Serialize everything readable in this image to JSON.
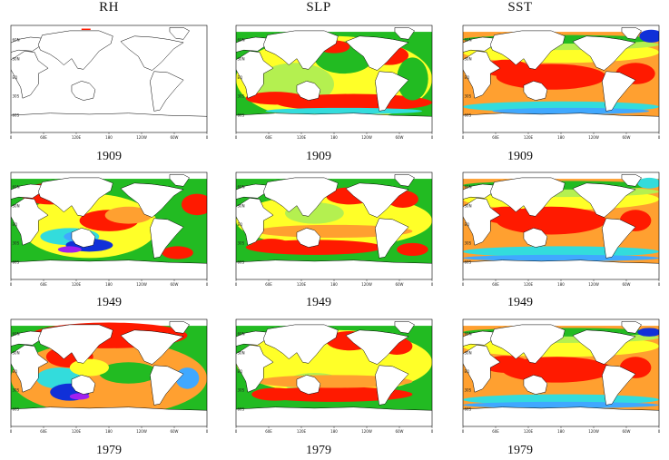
{
  "columns": [
    {
      "key": "rh",
      "title": "RH"
    },
    {
      "key": "slp",
      "title": "SLP"
    },
    {
      "key": "sst",
      "title": "SST"
    }
  ],
  "years": [
    "1909",
    "1949",
    "1979"
  ],
  "axis": {
    "x_ticks": [
      "0",
      "60E",
      "120E",
      "180",
      "120W",
      "60W",
      "0"
    ],
    "y_ticks": [
      "60N",
      "30N",
      "EQ",
      "30S",
      "60S"
    ]
  },
  "colors": {
    "red": "#ff1a00",
    "orange": "#ffa030",
    "yellow": "#ffff28",
    "lightgreen": "#b4f050",
    "green": "#22bb22",
    "cyan": "#33dcdc",
    "lightblue": "#40a8ff",
    "blue": "#1030d8",
    "purple": "#a020f0",
    "land": "#ffffff",
    "coast": "#000000"
  },
  "panels": [
    {
      "col": "rh",
      "year": "1909",
      "coverage": "sparse",
      "dominant_colors": [
        "red"
      ]
    },
    {
      "col": "slp",
      "year": "1909",
      "coverage": "ocean",
      "dominant_colors": [
        "red",
        "yellow",
        "green",
        "lightgreen",
        "cyan",
        "purple"
      ]
    },
    {
      "col": "sst",
      "year": "1909",
      "coverage": "ocean",
      "dominant_colors": [
        "red",
        "orange",
        "yellow",
        "lightgreen",
        "green",
        "cyan",
        "blue"
      ]
    },
    {
      "col": "rh",
      "year": "1949",
      "coverage": "ocean",
      "dominant_colors": [
        "red",
        "orange",
        "yellow",
        "green",
        "cyan",
        "blue",
        "purple"
      ]
    },
    {
      "col": "slp",
      "year": "1949",
      "coverage": "ocean",
      "dominant_colors": [
        "red",
        "orange",
        "yellow",
        "lightgreen",
        "green",
        "blue",
        "purple"
      ]
    },
    {
      "col": "sst",
      "year": "1949",
      "coverage": "ocean",
      "dominant_colors": [
        "red",
        "orange",
        "yellow",
        "lightgreen",
        "green",
        "cyan",
        "lightblue"
      ]
    },
    {
      "col": "rh",
      "year": "1979",
      "coverage": "ocean",
      "dominant_colors": [
        "red",
        "orange",
        "yellow",
        "green",
        "cyan",
        "blue",
        "purple"
      ]
    },
    {
      "col": "slp",
      "year": "1979",
      "coverage": "ocean",
      "dominant_colors": [
        "red",
        "orange",
        "yellow",
        "lightgreen",
        "green",
        "cyan",
        "blue",
        "purple"
      ]
    },
    {
      "col": "sst",
      "year": "1979",
      "coverage": "ocean",
      "dominant_colors": [
        "red",
        "orange",
        "yellow",
        "lightgreen",
        "green",
        "cyan",
        "blue"
      ]
    }
  ]
}
